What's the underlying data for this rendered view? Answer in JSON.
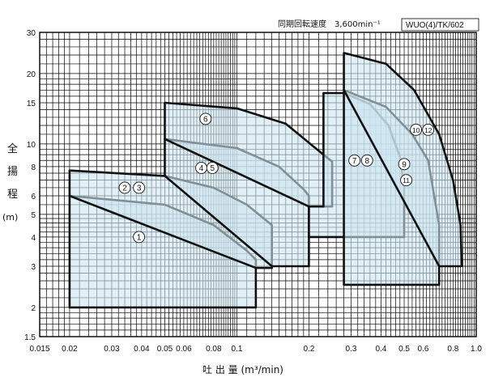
{
  "header": {
    "speed_label": "同期回転速度　3,600min⁻¹",
    "model_code": "WUO(4)/TK/602"
  },
  "axes": {
    "y_label_chars": [
      "全",
      "揚",
      "程",
      "(m)"
    ],
    "x_label": "吐 出 量 (m³/min)"
  },
  "chart_data": {
    "type": "area",
    "title": "",
    "xlabel": "吐 出 量 (m³/min)",
    "ylabel": "全揚程 (m)",
    "x_scale": "log",
    "y_scale": "log",
    "xlim": [
      0.015,
      1.0
    ],
    "ylim": [
      1.5,
      30
    ],
    "grid": true,
    "x_ticks": [
      {
        "v": 0.015,
        "label": "0.015"
      },
      {
        "v": 0.02,
        "label": "0.02"
      },
      {
        "v": 0.03,
        "label": "0.03"
      },
      {
        "v": 0.04,
        "label": "0.04"
      },
      {
        "v": 0.05,
        "label": "0.05"
      },
      {
        "v": 0.06,
        "label": "0.06"
      },
      {
        "v": 0.08,
        "label": "0.08"
      },
      {
        "v": 0.1,
        "label": "0.1"
      },
      {
        "v": 0.2,
        "label": "0.2"
      },
      {
        "v": 0.3,
        "label": "0.3"
      },
      {
        "v": 0.4,
        "label": "0.4"
      },
      {
        "v": 0.5,
        "label": "0.5"
      },
      {
        "v": 0.6,
        "label": "0.6"
      },
      {
        "v": 0.8,
        "label": "0.8"
      },
      {
        "v": 1.0,
        "label": "1.0"
      }
    ],
    "y_ticks": [
      {
        "v": 1.5,
        "label": "1.5"
      },
      {
        "v": 2,
        "label": "2"
      },
      {
        "v": 3,
        "label": "3"
      },
      {
        "v": 4,
        "label": "4"
      },
      {
        "v": 5,
        "label": "5"
      },
      {
        "v": 6,
        "label": "6"
      },
      {
        "v": 8,
        "label": "8"
      },
      {
        "v": 10,
        "label": "10"
      },
      {
        "v": 15,
        "label": "15"
      },
      {
        "v": 20,
        "label": "20"
      },
      {
        "v": 30,
        "label": "30"
      }
    ],
    "regions": [
      {
        "labels": [
          "1"
        ],
        "label_points": [
          [
            0.039,
            4.0
          ]
        ],
        "shape": [
          [
            0.02,
            2.0
          ],
          [
            0.02,
            6.0
          ],
          [
            0.05,
            5.5
          ],
          [
            0.08,
            4.5
          ],
          [
            0.11,
            3.5
          ],
          [
            0.12,
            3.2
          ],
          [
            0.12,
            2.0
          ]
        ]
      },
      {
        "labels": [
          "2",
          "3"
        ],
        "label_points": [
          [
            0.034,
            6.5
          ],
          [
            0.039,
            6.5
          ]
        ],
        "shape": [
          [
            0.02,
            6.0
          ],
          [
            0.02,
            7.7
          ],
          [
            0.05,
            7.3
          ],
          [
            0.08,
            6.5
          ],
          [
            0.11,
            5.5
          ],
          [
            0.14,
            4.5
          ],
          [
            0.14,
            2.95
          ],
          [
            0.12,
            2.95
          ]
        ]
      },
      {
        "labels": [
          "4",
          "5"
        ],
        "label_points": [
          [
            0.071,
            7.9
          ],
          [
            0.079,
            7.9
          ]
        ],
        "shape": [
          [
            0.05,
            7.3
          ],
          [
            0.05,
            10.5
          ],
          [
            0.1,
            9.6
          ],
          [
            0.15,
            8.0
          ],
          [
            0.19,
            6.4
          ],
          [
            0.2,
            6.0
          ],
          [
            0.2,
            3.0
          ],
          [
            0.14,
            3.0
          ]
        ]
      },
      {
        "labels": [
          "6"
        ],
        "label_points": [
          [
            0.074,
            12.8
          ]
        ],
        "shape": [
          [
            0.05,
            10.5
          ],
          [
            0.05,
            15.0
          ],
          [
            0.1,
            14.2
          ],
          [
            0.16,
            12.2
          ],
          [
            0.23,
            9.0
          ],
          [
            0.25,
            8.4
          ],
          [
            0.25,
            5.4
          ],
          [
            0.2,
            5.4
          ]
        ]
      },
      {
        "labels": [
          "7",
          "8"
        ],
        "label_points": [
          [
            0.31,
            8.5
          ],
          [
            0.35,
            8.5
          ]
        ],
        "shape": [
          [
            0.2,
            5.4
          ],
          [
            0.23,
            5.4
          ],
          [
            0.23,
            16.5
          ],
          [
            0.28,
            16.5
          ],
          [
            0.36,
            14.8
          ],
          [
            0.43,
            12.0
          ],
          [
            0.48,
            8.8
          ],
          [
            0.5,
            6.5
          ],
          [
            0.5,
            4.0
          ],
          [
            0.2,
            4.0
          ]
        ]
      },
      {
        "labels": [
          "9",
          "11"
        ],
        "label_points": [
          [
            0.5,
            8.2
          ],
          [
            0.51,
            7.0
          ]
        ],
        "shape": [
          [
            0.28,
            4.0
          ],
          [
            0.28,
            17.0
          ],
          [
            0.42,
            14.4
          ],
          [
            0.54,
            11.0
          ],
          [
            0.63,
            8.5
          ],
          [
            0.7,
            4.5
          ],
          [
            0.7,
            2.5
          ],
          [
            0.28,
            2.5
          ]
        ]
      },
      {
        "labels": [
          "10",
          "12"
        ],
        "label_points": [
          [
            0.56,
            11.5
          ],
          [
            0.63,
            11.5
          ]
        ],
        "shape": [
          [
            0.28,
            17.0
          ],
          [
            0.28,
            24.5
          ],
          [
            0.42,
            22.0
          ],
          [
            0.55,
            17.0
          ],
          [
            0.7,
            11.0
          ],
          [
            0.8,
            7.0
          ],
          [
            0.86,
            4.5
          ],
          [
            0.87,
            3.0
          ],
          [
            0.7,
            3.0
          ]
        ]
      }
    ]
  }
}
